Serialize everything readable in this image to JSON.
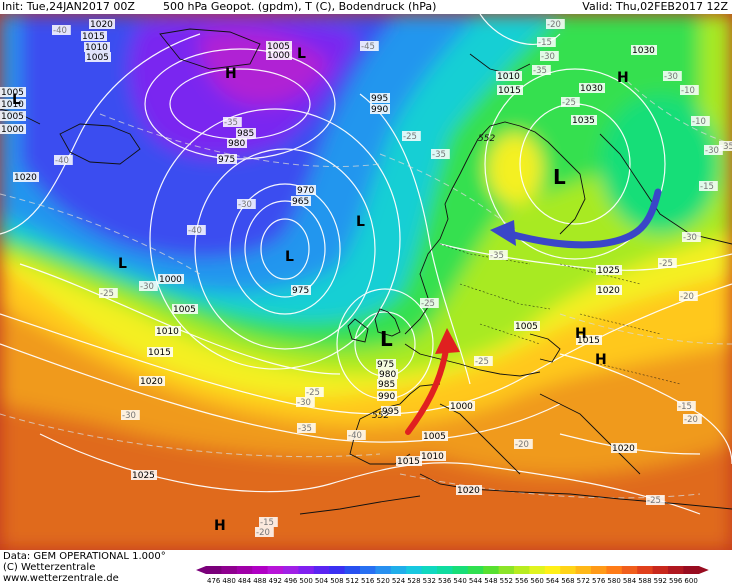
{
  "header": {
    "init": "Init: Tue,24JAN2017 00Z",
    "field": "500 hPa Geopot. (gpdm), T (C), Bodendruck (hPa)",
    "valid": "Valid: Thu,02FEB2017 12Z"
  },
  "footer": {
    "data_source": "Data: GEM OPERATIONAL 1.000°",
    "copyright": "(C) Wetterzentrale",
    "website": "www.wetterzentrale.de"
  },
  "scale": {
    "values": [
      "476",
      "480",
      "484",
      "488",
      "492",
      "496",
      "500",
      "504",
      "508",
      "512",
      "516",
      "520",
      "524",
      "528",
      "532",
      "536",
      "540",
      "544",
      "548",
      "552",
      "556",
      "560",
      "564",
      "568",
      "572",
      "576",
      "580",
      "584",
      "588",
      "592",
      "596",
      "600"
    ],
    "colors": [
      "#7a007a",
      "#8f008f",
      "#a000a8",
      "#b000c4",
      "#b814d8",
      "#a020e6",
      "#8020f0",
      "#5a24f2",
      "#3a30f2",
      "#2850f0",
      "#2870f2",
      "#2890f0",
      "#20aeea",
      "#18c8e0",
      "#10d8c0",
      "#10dca0",
      "#18de78",
      "#30e050",
      "#58e030",
      "#8ce428",
      "#b8ec20",
      "#e0f420",
      "#fff018",
      "#ffd418",
      "#ffb818",
      "#ff9a18",
      "#ff7c18",
      "#f05e1c",
      "#e0401c",
      "#c8281c",
      "#b01820",
      "#980c20"
    ]
  },
  "map_labels": {
    "pressure_centers": [
      {
        "symbol": "H",
        "kind": "high"
      },
      {
        "symbol": "L",
        "kind": "low"
      },
      {
        "symbol": "L",
        "kind": "low"
      },
      {
        "symbol": "L",
        "kind": "low"
      },
      {
        "symbol": "L",
        "kind": "low"
      },
      {
        "symbol": "L",
        "kind": "low"
      },
      {
        "symbol": "L",
        "kind": "low"
      },
      {
        "symbol": "H",
        "kind": "high"
      },
      {
        "symbol": "H",
        "kind": "high"
      },
      {
        "symbol": "H",
        "kind": "high"
      },
      {
        "symbol": "H",
        "kind": "high"
      },
      {
        "symbol": "L",
        "kind": "low"
      }
    ],
    "isobars": [
      "1020",
      "1015",
      "1010",
      "1005",
      "1005",
      "1000",
      "995",
      "990",
      "985",
      "980",
      "975",
      "970",
      "965",
      "975",
      "1000",
      "1005",
      "1010",
      "1015",
      "1020",
      "975",
      "980",
      "985",
      "990",
      "995",
      "1000",
      "1005",
      "1015",
      "1010",
      "1025",
      "1020",
      "1010",
      "1015",
      "1005",
      "1030",
      "1030",
      "1035",
      "1025",
      "1020",
      "1015",
      "1020",
      "1020",
      "1005",
      "1010",
      "1005",
      "1000"
    ],
    "temperatures": [
      "-40",
      "-45",
      "-35",
      "-30",
      "-40",
      "-40",
      "-30",
      "-35",
      "-35",
      "-25",
      "-35",
      "-30",
      "-30",
      "-25",
      "-25",
      "-25",
      "-30",
      "-25",
      "-25",
      "-30",
      "-35",
      "-40",
      "-30",
      "-25",
      "-20",
      "-15",
      "-15",
      "-20",
      "-25",
      "-20",
      "-20",
      "-15",
      "-10",
      "-10",
      "-15",
      "-20",
      "-35",
      "-30"
    ],
    "height_contours": [
      "552",
      "552"
    ]
  },
  "annotations": [
    {
      "shape": "arrow",
      "color": "#3a46c8"
    },
    {
      "shape": "arrow",
      "color": "#e02020"
    }
  ]
}
